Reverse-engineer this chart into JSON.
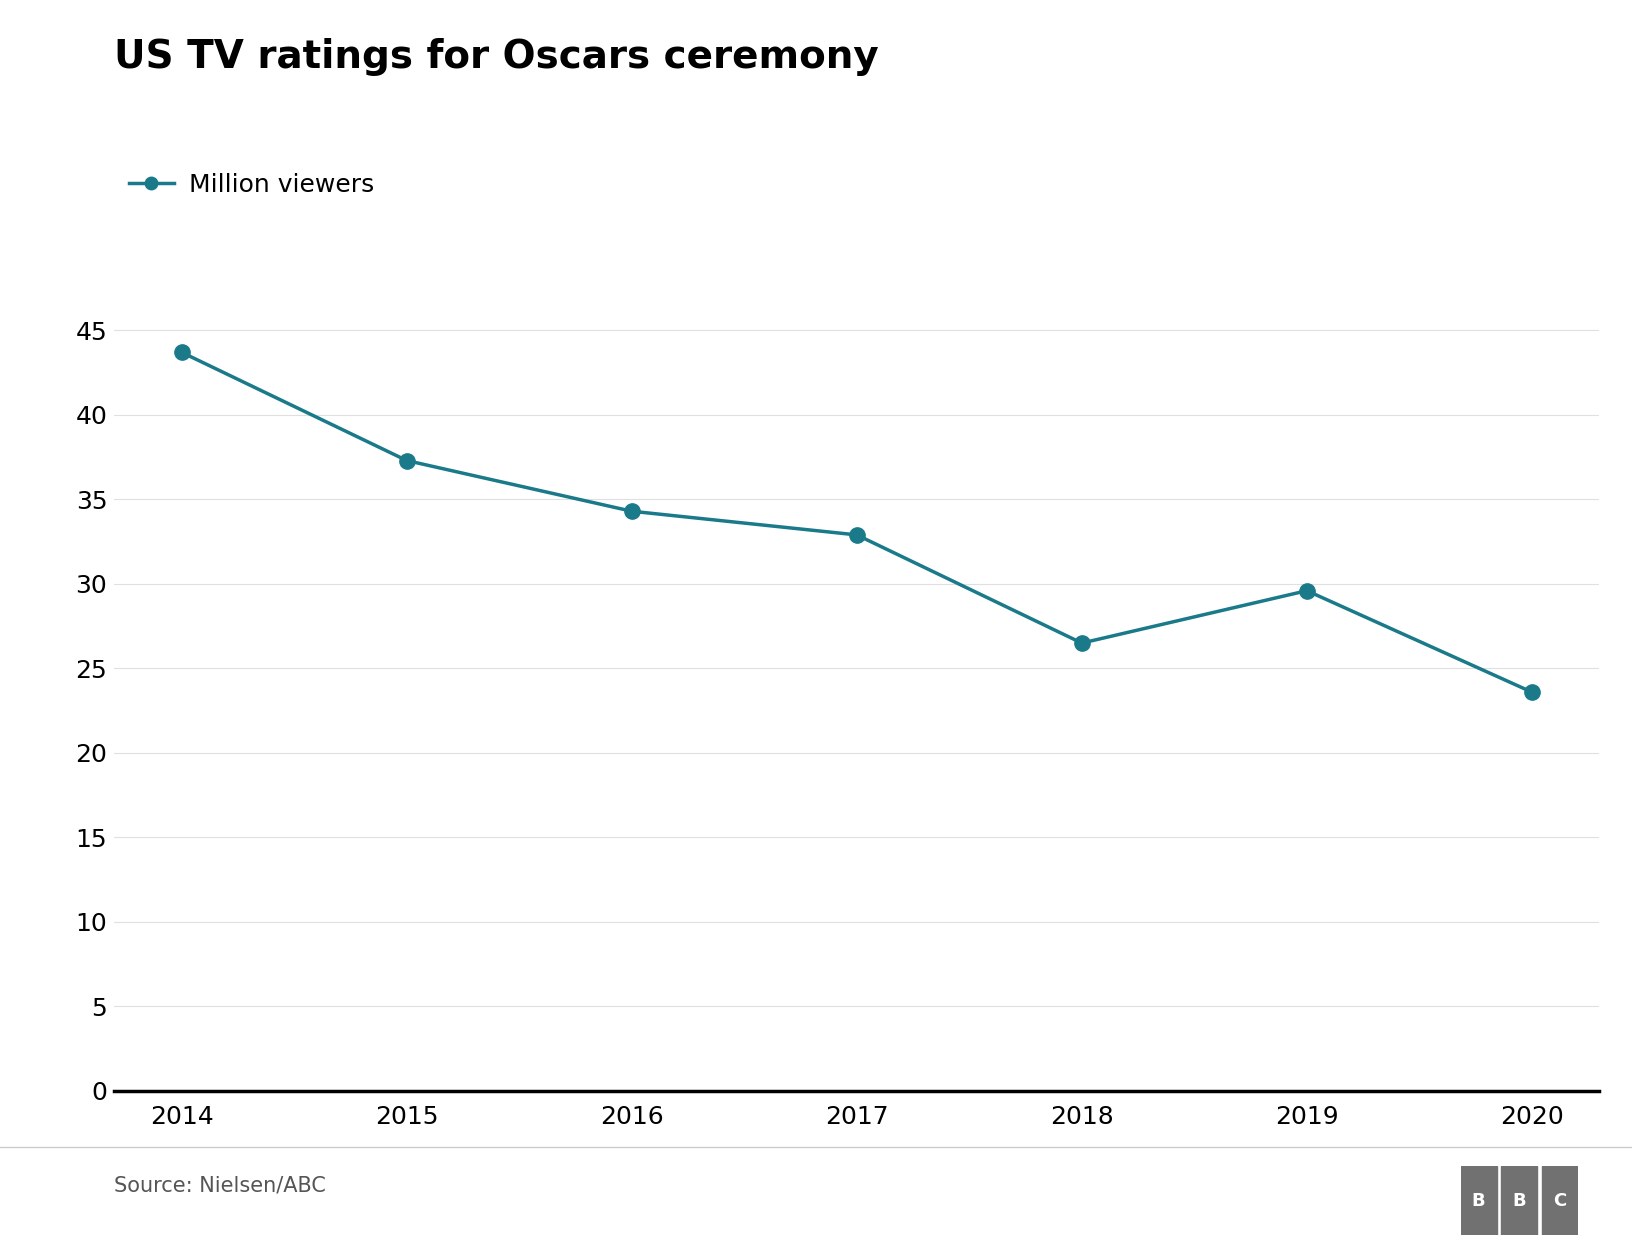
{
  "title": "US TV ratings for Oscars ceremony",
  "legend_label": "Million viewers",
  "source_text": "Source: Nielsen/ABC",
  "years": [
    2014,
    2015,
    2016,
    2017,
    2018,
    2019,
    2020
  ],
  "viewers": [
    43.7,
    37.3,
    34.3,
    32.9,
    26.5,
    29.6,
    23.6
  ],
  "line_color": "#1a7a8a",
  "marker_color": "#1a7a8a",
  "background_color": "#ffffff",
  "title_fontsize": 28,
  "legend_fontsize": 18,
  "tick_fontsize": 18,
  "source_fontsize": 15,
  "ylim": [
    0,
    46
  ],
  "yticks": [
    0,
    5,
    10,
    15,
    20,
    25,
    30,
    35,
    40,
    45
  ],
  "xlim": [
    2013.7,
    2020.3
  ],
  "line_width": 2.5,
  "marker_size": 11,
  "bbc_color": "#717171"
}
